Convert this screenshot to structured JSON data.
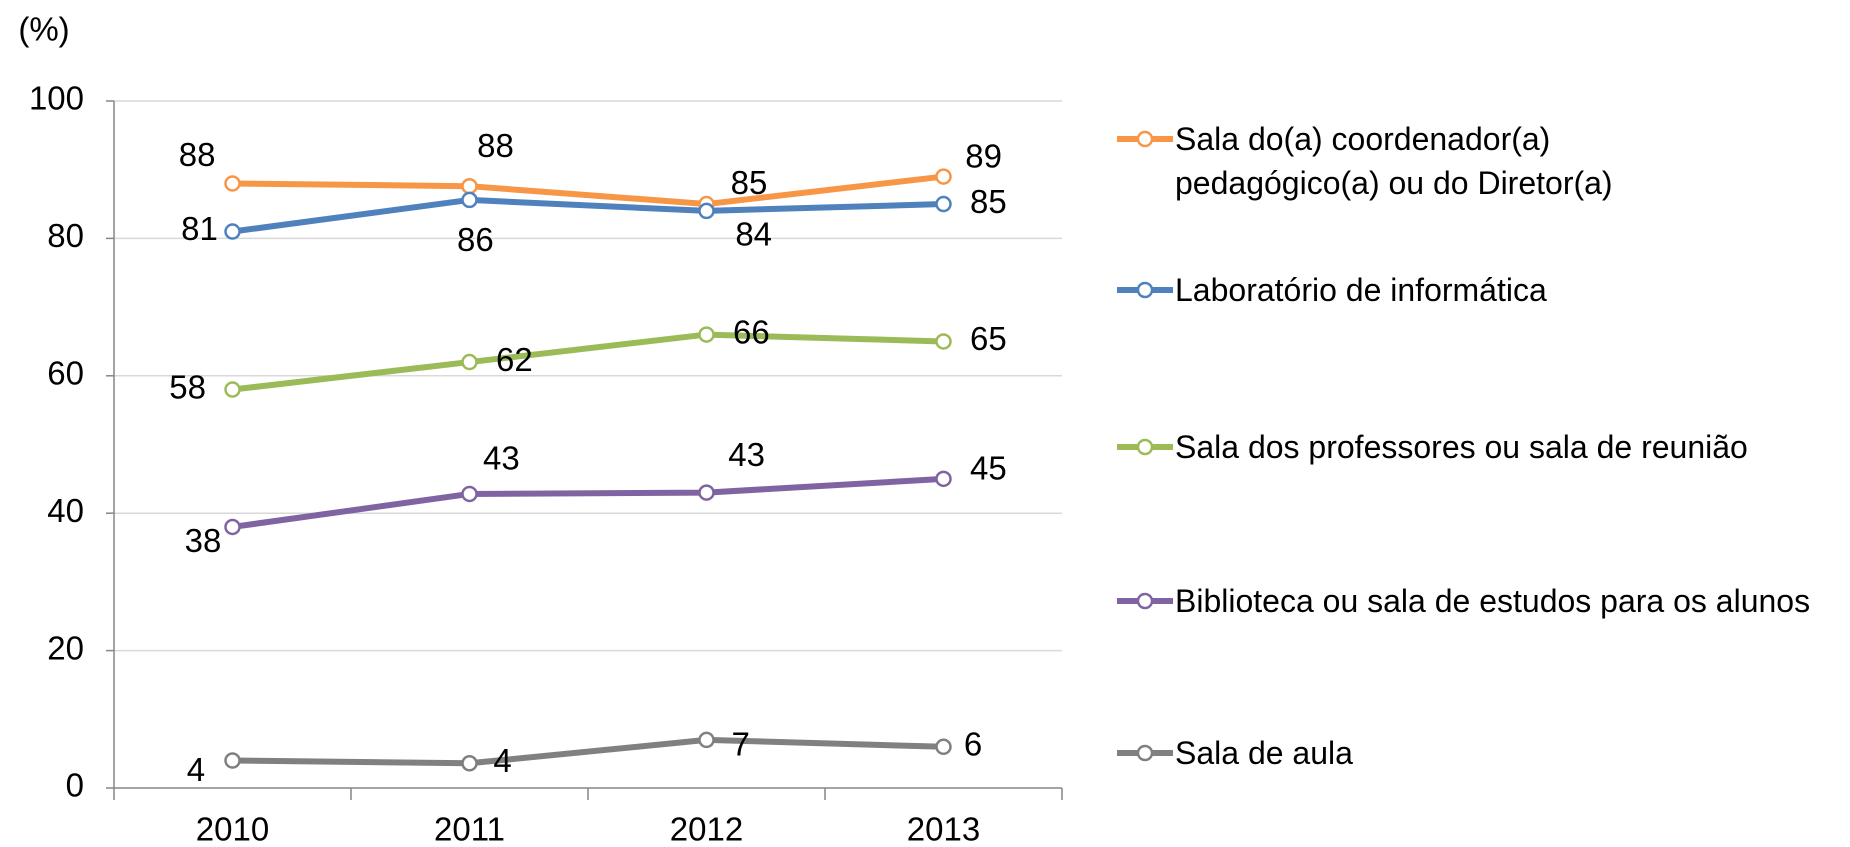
{
  "chart_data": {
    "type": "line",
    "y_label": "(%)",
    "categories": [
      "2010",
      "2011",
      "2012",
      "2013"
    ],
    "series": [
      {
        "name": "Sala do(a) coordenador(a) pedagógico(a) ou do Diretor(a)",
        "color": "#f79646",
        "values": [
          88,
          87.6,
          85,
          89
        ],
        "value_labels": [
          "88",
          "88",
          "85",
          "89"
        ]
      },
      {
        "name": "Laboratório de informática",
        "color": "#4f81bd",
        "values": [
          81,
          85.6,
          84,
          85
        ],
        "value_labels": [
          "81",
          "86",
          "84",
          "85"
        ]
      },
      {
        "name": "Sala dos professores ou sala de reunião",
        "color": "#9bbb59",
        "values": [
          58,
          62,
          66,
          65
        ],
        "value_labels": [
          "58",
          "62",
          "66",
          "65"
        ]
      },
      {
        "name": "Biblioteca ou sala de estudos para os alunos",
        "color": "#8064a2",
        "values": [
          38,
          42.8,
          43,
          45
        ],
        "value_labels": [
          "38",
          "43",
          "43",
          "45"
        ]
      },
      {
        "name": "Sala de aula",
        "color": "#808080",
        "values": [
          4,
          3.6,
          7,
          6
        ],
        "value_labels": [
          "4",
          "4",
          "7",
          "6"
        ]
      }
    ],
    "ylim": [
      0,
      100
    ],
    "yticks": [
      0,
      20,
      40,
      60,
      80,
      100
    ],
    "grid": true,
    "legend": "right"
  }
}
